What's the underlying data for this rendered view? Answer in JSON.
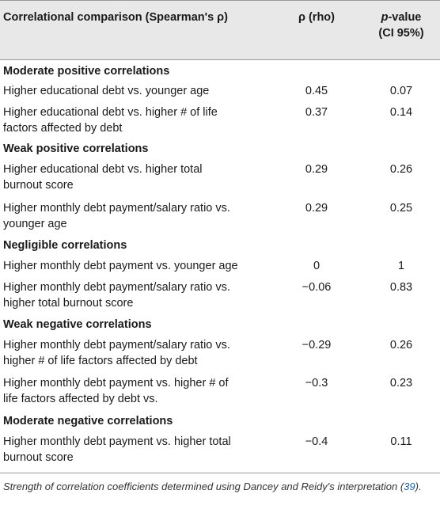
{
  "header": {
    "col1": "Correlational comparison (Spearman's ρ)",
    "col2": "ρ (rho)",
    "col3_italic": "p",
    "col3_rest": "-value",
    "col3_line2": "(CI 95%)"
  },
  "groups": [
    {
      "title": "Moderate positive correlations",
      "rows": [
        {
          "line1": "Higher educational debt vs. younger age",
          "line2": "",
          "rho": "0.45",
          "p": "0.07"
        },
        {
          "line1": "Higher educational debt vs. higher # of life",
          "line2": "factors affected by debt",
          "rho": "0.37",
          "p": "0.14"
        }
      ]
    },
    {
      "title": "Weak positive correlations",
      "rows": [
        {
          "line1": "Higher educational debt vs. higher total",
          "line2": "burnout score",
          "rho": "0.29",
          "p": "0.26"
        },
        {
          "line1": "Higher monthly debt payment/salary ratio vs.",
          "line2": "younger age",
          "rho": "0.29",
          "p": "0.25"
        }
      ]
    },
    {
      "title": "Negligible correlations",
      "rows": [
        {
          "line1": "Higher monthly debt payment vs. younger age",
          "line2": "",
          "rho": "0",
          "p": "1"
        },
        {
          "line1": "Higher monthly debt payment/salary ratio vs.",
          "line2": "higher total burnout score",
          "rho": "−0.06",
          "p": "0.83"
        }
      ]
    },
    {
      "title": "Weak negative correlations",
      "rows": [
        {
          "line1": "Higher monthly debt payment/salary ratio vs.",
          "line2": "higher # of life factors affected by debt",
          "rho": "−0.29",
          "p": "0.26"
        },
        {
          "line1": "Higher monthly debt payment vs. higher # of",
          "line2": "life factors affected by debt vs.",
          "rho": "−0.3",
          "p": "0.23"
        }
      ]
    },
    {
      "title": "Moderate negative correlations",
      "rows": [
        {
          "line1": "Higher monthly debt payment vs. higher total",
          "line2": "burnout score",
          "rho": "−0.4",
          "p": "0.11"
        }
      ]
    }
  ],
  "footnote": {
    "text": "Strength of correlation coefficients determined using Dancey and Reidy's interpretation (",
    "ref": "39",
    "end": ")."
  }
}
